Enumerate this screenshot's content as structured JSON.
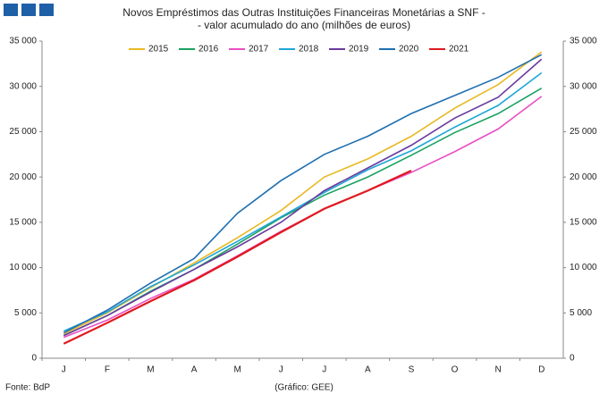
{
  "chart_data": {
    "type": "line",
    "title": "Novos Empréstimos das Outras Instituições Financeiras Monetárias a SNF -",
    "subtitle": "- valor acumulado do ano (milhões de euros)",
    "source": "Fonte: BdP",
    "credit": "(Gráfico: GEE)",
    "categories": [
      "J",
      "F",
      "M",
      "A",
      "M",
      "J",
      "J",
      "A",
      "S",
      "O",
      "N",
      "D"
    ],
    "series": [
      {
        "name": "2015",
        "color": "#e8b923",
        "values": [
          2700,
          5000,
          7800,
          10500,
          13300,
          16300,
          20000,
          22000,
          24500,
          27600,
          30200,
          33800
        ]
      },
      {
        "name": "2016",
        "color": "#1aa260",
        "values": [
          2500,
          4700,
          7400,
          9800,
          12600,
          15500,
          18000,
          20000,
          22400,
          24900,
          27000,
          29800
        ]
      },
      {
        "name": "2017",
        "color": "#e94fc4",
        "values": [
          2300,
          4200,
          6600,
          8700,
          11300,
          14000,
          16500,
          18500,
          20500,
          22800,
          25300,
          28900
        ]
      },
      {
        "name": "2018",
        "color": "#1fa6d8",
        "values": [
          3000,
          5100,
          7900,
          10300,
          12900,
          15600,
          18300,
          20800,
          22900,
          25500,
          27900,
          31500
        ]
      },
      {
        "name": "2019",
        "color": "#6a3a9e",
        "values": [
          2500,
          4700,
          7300,
          9800,
          12300,
          15000,
          18500,
          21000,
          23500,
          26500,
          28800,
          33000
        ]
      },
      {
        "name": "2020",
        "color": "#1f6fb0",
        "values": [
          2800,
          5300,
          8300,
          11000,
          16000,
          19600,
          22500,
          24500,
          27000,
          29000,
          31000,
          33500
        ]
      },
      {
        "name": "2021",
        "color": "#e0191f",
        "values": [
          1600,
          3900,
          6300,
          8600,
          11200,
          13900,
          16500,
          18500,
          20700,
          null,
          null,
          null
        ]
      }
    ],
    "ylim": [
      0,
      35000
    ],
    "yticks": [
      0,
      {
        "value": 5000,
        "label": "5 000"
      },
      {
        "value": 10000,
        "label": "10 000"
      },
      {
        "value": 15000,
        "label": "15 000"
      },
      {
        "value": 20000,
        "label": "20 000"
      },
      {
        "value": 25000,
        "label": "25 000"
      },
      {
        "value": 30000,
        "label": "30 000"
      },
      {
        "value": 35000,
        "label": "35 000"
      }
    ],
    "grid": false
  }
}
